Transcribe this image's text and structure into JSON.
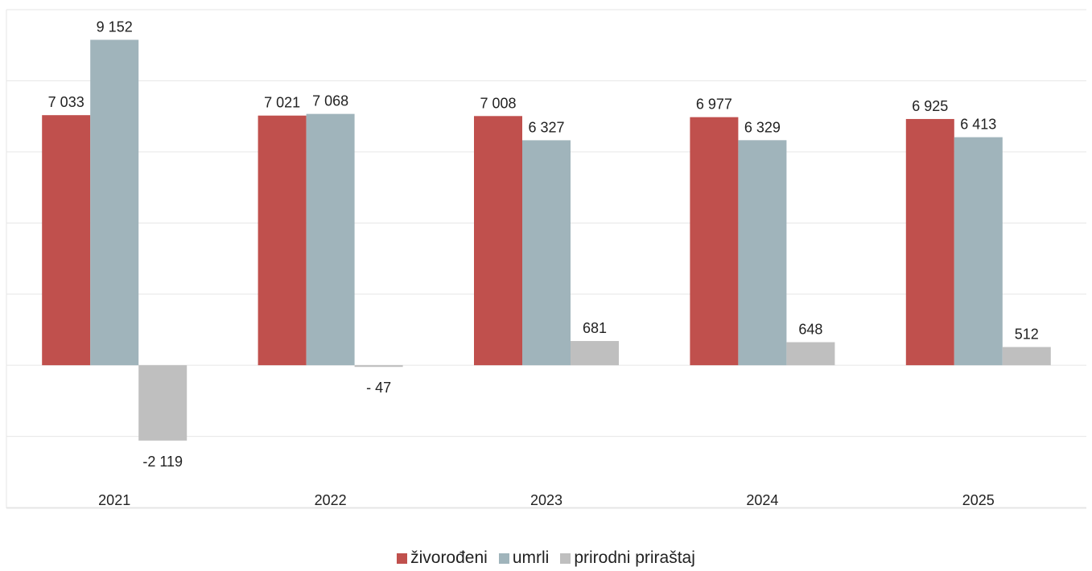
{
  "chart_data": {
    "type": "bar",
    "categories": [
      "2021",
      "2022",
      "2023",
      "2024",
      "2025"
    ],
    "series": [
      {
        "name": "živorođeni",
        "color": "#c0504d",
        "values": [
          7033,
          7021,
          7008,
          6977,
          6925
        ],
        "labels": [
          "7 033",
          "7 021",
          "7 008",
          "6 977",
          "6 925"
        ]
      },
      {
        "name": "umrli",
        "color": "#a0b4bb",
        "values": [
          9152,
          7068,
          6327,
          6329,
          6413
        ],
        "labels": [
          "9 152",
          "7 068",
          "6 327",
          "6 329",
          "6 413"
        ]
      },
      {
        "name": "prirodni priraštaj",
        "color": "#bfbfbf",
        "values": [
          -2119,
          -47,
          681,
          648,
          512
        ],
        "labels": [
          "-2 119",
          "- 47",
          "681",
          "648",
          "512"
        ]
      }
    ],
    "ylim": [
      -4000,
      10000
    ],
    "grid": true,
    "legend_position": "bottom"
  }
}
